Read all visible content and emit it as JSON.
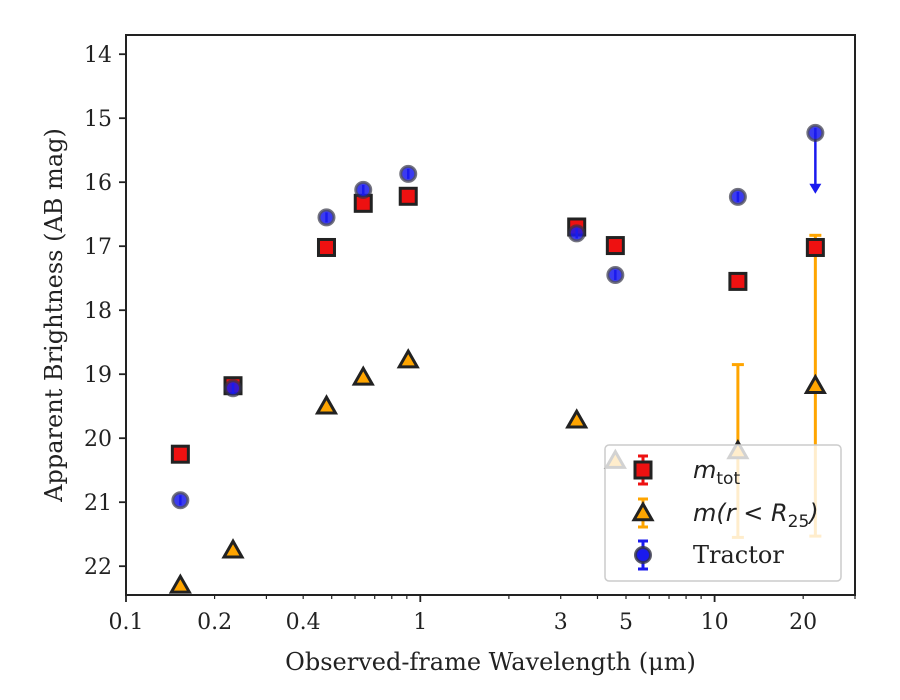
{
  "chart_data": {
    "type": "scatter",
    "xlabel": "Observed-frame Wavelength (μm)",
    "ylabel": "Apparent Brightness (AB mag)",
    "xscale": "log",
    "xlim": [
      0.1,
      30
    ],
    "ylim": [
      22.45,
      13.7
    ],
    "y_inverted": true,
    "x_major_ticks": [
      0.1,
      1,
      10
    ],
    "x_tick_labels": [
      {
        "value": 0.1,
        "label": "0.1"
      },
      {
        "value": 0.2,
        "label": "0.2"
      },
      {
        "value": 0.4,
        "label": "0.4"
      },
      {
        "value": 1,
        "label": "1"
      },
      {
        "value": 3,
        "label": "3"
      },
      {
        "value": 5,
        "label": "5"
      },
      {
        "value": 10,
        "label": "10"
      },
      {
        "value": 20,
        "label": "20"
      }
    ],
    "y_ticks": [
      14,
      15,
      16,
      17,
      18,
      19,
      20,
      21,
      22
    ],
    "y_tick_labels": [
      "14",
      "15",
      "16",
      "17",
      "18",
      "19",
      "20",
      "21",
      "22"
    ],
    "grid": false,
    "legend": {
      "placement": "lower-right",
      "entries": [
        {
          "series": "m_tot",
          "label_main": "m",
          "label_sub": "tot"
        },
        {
          "series": "m_r25",
          "label_main": "m(r < R",
          "label_sub": "25",
          "label_end": ")"
        },
        {
          "series": "tractor",
          "label_main": "Tractor"
        }
      ]
    },
    "series": [
      {
        "key": "m_tot",
        "marker": "square",
        "color": "#ee1111",
        "ecolor": "#ee1111",
        "points": [
          {
            "x": 0.153,
            "y": 20.25,
            "err": 0
          },
          {
            "x": 0.231,
            "y": 19.18,
            "err": 0
          },
          {
            "x": 0.48,
            "y": 17.02,
            "err": 0
          },
          {
            "x": 0.64,
            "y": 16.33,
            "err": 0
          },
          {
            "x": 0.91,
            "y": 16.22,
            "err": 0
          },
          {
            "x": 3.4,
            "y": 16.7,
            "err": 0
          },
          {
            "x": 4.6,
            "y": 16.99,
            "err": 0
          },
          {
            "x": 12.0,
            "y": 17.55,
            "err": 0
          },
          {
            "x": 22.0,
            "y": 17.02,
            "err": 0
          }
        ]
      },
      {
        "key": "m_r25",
        "marker": "triangle",
        "color": "#ffa500",
        "ecolor": "#ffa500",
        "points": [
          {
            "x": 0.153,
            "y": 22.3,
            "err": 0
          },
          {
            "x": 0.231,
            "y": 21.75,
            "err": 0
          },
          {
            "x": 0.48,
            "y": 19.5,
            "err": 0
          },
          {
            "x": 0.64,
            "y": 19.05,
            "err": 0
          },
          {
            "x": 0.91,
            "y": 18.78,
            "err": 0
          },
          {
            "x": 3.4,
            "y": 19.72,
            "err": 0
          },
          {
            "x": 4.6,
            "y": 20.35,
            "err": 0
          },
          {
            "x": 12.0,
            "y": 20.2,
            "err_lo": 1.35,
            "err_hi": 1.35
          },
          {
            "x": 22.0,
            "y": 19.18,
            "err_lo": 2.35,
            "err_hi": 2.35
          }
        ]
      },
      {
        "key": "tractor",
        "marker": "circle",
        "color": "#1a1aee",
        "ecolor": "#1a1aee",
        "points": [
          {
            "x": 0.153,
            "y": 20.97,
            "err": 0
          },
          {
            "x": 0.231,
            "y": 19.22,
            "err": 0
          },
          {
            "x": 0.48,
            "y": 16.55,
            "err": 0
          },
          {
            "x": 0.64,
            "y": 16.12,
            "err": 0
          },
          {
            "x": 0.91,
            "y": 15.87,
            "err": 0
          },
          {
            "x": 3.4,
            "y": 16.8,
            "err": 0
          },
          {
            "x": 4.6,
            "y": 17.45,
            "err": 0
          },
          {
            "x": 12.0,
            "y": 16.23,
            "err": 0
          },
          {
            "x": 22.0,
            "y": 15.23,
            "upper_limit": true,
            "arrow_to": 16.15
          }
        ]
      }
    ]
  }
}
